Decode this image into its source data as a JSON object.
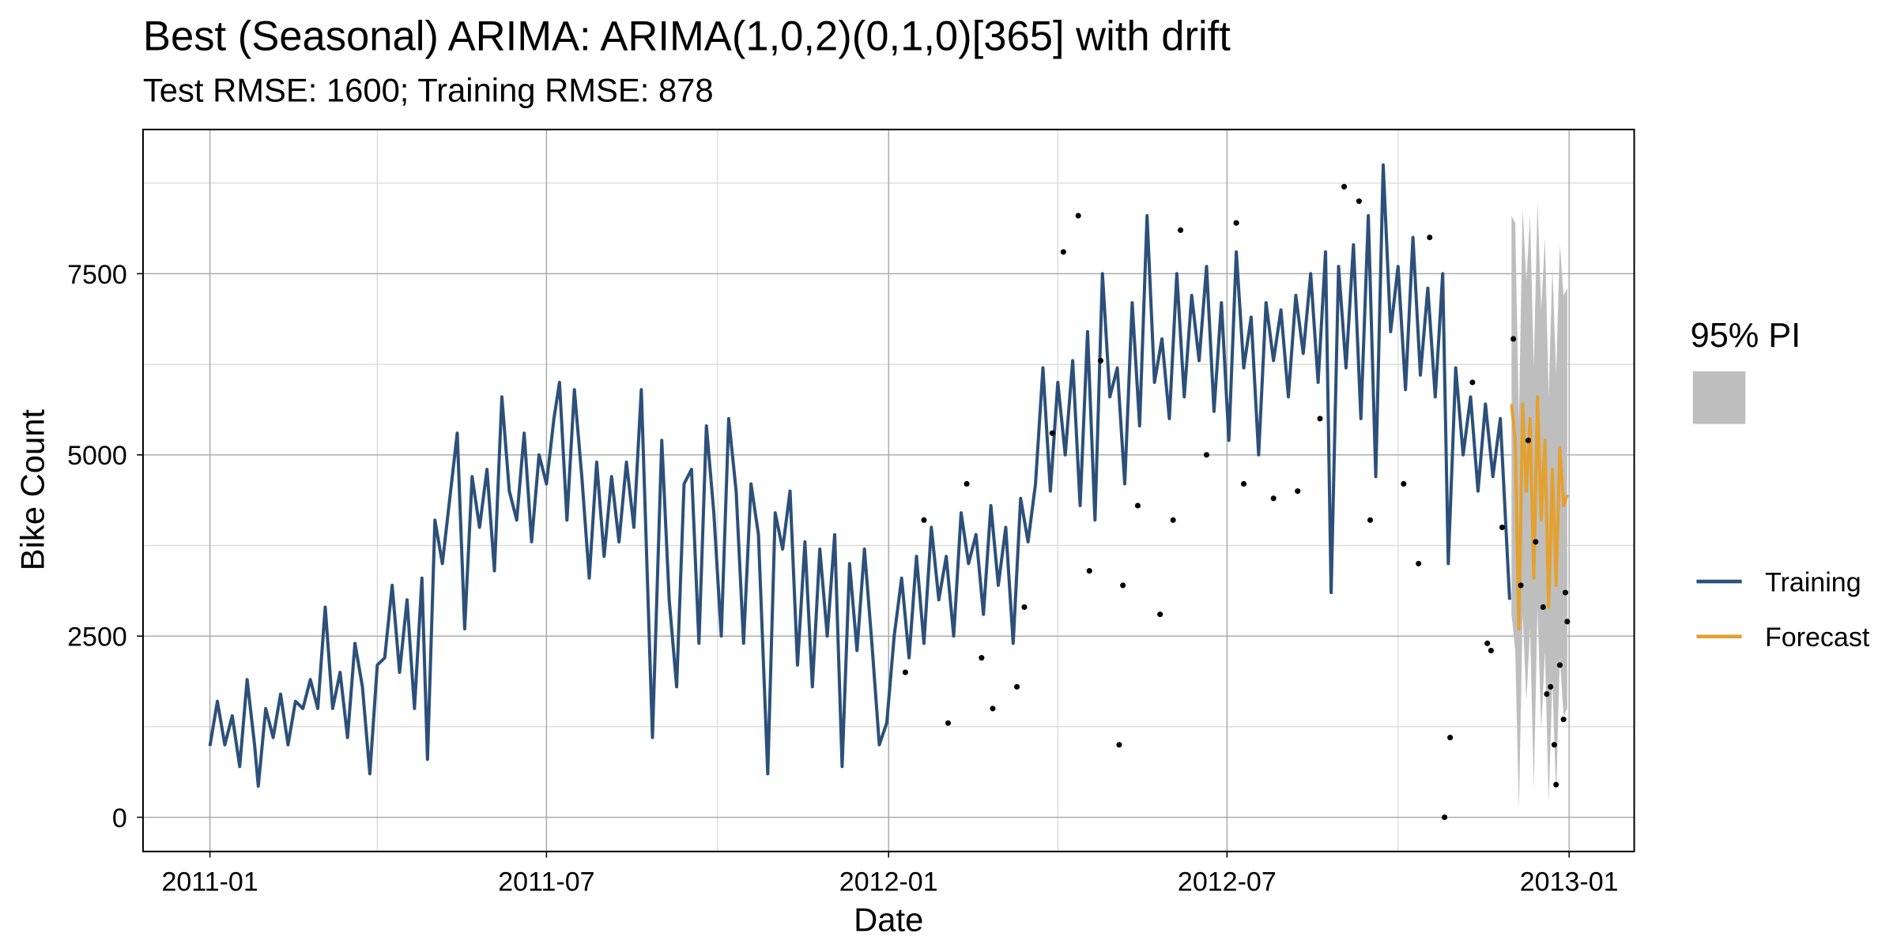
{
  "chart_data": {
    "type": "line",
    "title": "Best (Seasonal) ARIMA: ARIMA(1,0,2)(0,1,0)[365] with drift",
    "subtitle": "Test RMSE: 1600; Training RMSE: 878",
    "x_label": "Date",
    "y_label": "Bike Count",
    "xlim": [
      "2010-11-26",
      "2013-02-05"
    ],
    "ylim": [
      -472,
      9489
    ],
    "xticks": [
      {
        "value": "2011-01-01",
        "label": "2011-01"
      },
      {
        "value": "2011-07-01",
        "label": "2011-07"
      },
      {
        "value": "2012-01-01",
        "label": "2012-01"
      },
      {
        "value": "2012-07-01",
        "label": "2012-07"
      },
      {
        "value": "2013-01-01",
        "label": "2013-01"
      }
    ],
    "xminorticks": [
      "2011-04-01",
      "2011-10-01",
      "2012-04-01",
      "2012-10-01"
    ],
    "yticks": [
      0,
      2500,
      5000,
      7500
    ],
    "yminorticks": [
      1250,
      3750,
      6250,
      8750
    ],
    "grid": true,
    "series": [
      {
        "name": "Training",
        "color": "#2c5079",
        "x": [
          "2011-01-01",
          "2011-01-05",
          "2011-01-09",
          "2011-01-13",
          "2011-01-17",
          "2011-01-21",
          "2011-01-25",
          "2011-01-27",
          "2011-01-31",
          "2011-02-04",
          "2011-02-08",
          "2011-02-12",
          "2011-02-16",
          "2011-02-20",
          "2011-02-24",
          "2011-02-28",
          "2011-03-04",
          "2011-03-08",
          "2011-03-12",
          "2011-03-16",
          "2011-03-20",
          "2011-03-24",
          "2011-03-28",
          "2011-04-01",
          "2011-04-05",
          "2011-04-09",
          "2011-04-13",
          "2011-04-17",
          "2011-04-21",
          "2011-04-25",
          "2011-04-28",
          "2011-05-02",
          "2011-05-06",
          "2011-05-10",
          "2011-05-14",
          "2011-05-18",
          "2011-05-22",
          "2011-05-26",
          "2011-05-30",
          "2011-06-03",
          "2011-06-07",
          "2011-06-11",
          "2011-06-15",
          "2011-06-19",
          "2011-06-23",
          "2011-06-27",
          "2011-07-01",
          "2011-07-05",
          "2011-07-08",
          "2011-07-12",
          "2011-07-16",
          "2011-07-20",
          "2011-07-24",
          "2011-07-28",
          "2011-08-01",
          "2011-08-05",
          "2011-08-09",
          "2011-08-13",
          "2011-08-17",
          "2011-08-21",
          "2011-08-27",
          "2011-09-01",
          "2011-09-05",
          "2011-09-09",
          "2011-09-13",
          "2011-09-17",
          "2011-09-21",
          "2011-09-25",
          "2011-09-29",
          "2011-10-03",
          "2011-10-07",
          "2011-10-11",
          "2011-10-15",
          "2011-10-19",
          "2011-10-23",
          "2011-10-28",
          "2011-11-01",
          "2011-11-05",
          "2011-11-09",
          "2011-11-13",
          "2011-11-17",
          "2011-11-21",
          "2011-11-25",
          "2011-11-29",
          "2011-12-03",
          "2011-12-07",
          "2011-12-11",
          "2011-12-15",
          "2011-12-19",
          "2011-12-23",
          "2011-12-27",
          "2011-12-31",
          "2012-01-04",
          "2012-01-08",
          "2012-01-12",
          "2012-01-16",
          "2012-01-20",
          "2012-01-24",
          "2012-01-28",
          "2012-02-01",
          "2012-02-05",
          "2012-02-09",
          "2012-02-13",
          "2012-02-17",
          "2012-02-21",
          "2012-02-25",
          "2012-02-29",
          "2012-03-04",
          "2012-03-08",
          "2012-03-12",
          "2012-03-16",
          "2012-03-20",
          "2012-03-24",
          "2012-03-28",
          "2012-04-01",
          "2012-04-05",
          "2012-04-09",
          "2012-04-13",
          "2012-04-17",
          "2012-04-21",
          "2012-04-25",
          "2012-04-29",
          "2012-05-03",
          "2012-05-07",
          "2012-05-11",
          "2012-05-15",
          "2012-05-19",
          "2012-05-23",
          "2012-05-27",
          "2012-05-31",
          "2012-06-04",
          "2012-06-08",
          "2012-06-12",
          "2012-06-16",
          "2012-06-20",
          "2012-06-24",
          "2012-06-28",
          "2012-07-02",
          "2012-07-06",
          "2012-07-10",
          "2012-07-14",
          "2012-07-18",
          "2012-07-22",
          "2012-07-26",
          "2012-07-30",
          "2012-08-03",
          "2012-08-07",
          "2012-08-11",
          "2012-08-15",
          "2012-08-19",
          "2012-08-23",
          "2012-08-26",
          "2012-08-30",
          "2012-09-03",
          "2012-09-07",
          "2012-09-11",
          "2012-09-15",
          "2012-09-19",
          "2012-09-23",
          "2012-09-27",
          "2012-10-01",
          "2012-10-05",
          "2012-10-09",
          "2012-10-13",
          "2012-10-17",
          "2012-10-21",
          "2012-10-25",
          "2012-10-28",
          "2012-11-01",
          "2012-11-05",
          "2012-11-09",
          "2012-11-13",
          "2012-11-17",
          "2012-11-21",
          "2012-11-25",
          "2012-11-30"
        ],
        "values": [
          985,
          1600,
          1000,
          1400,
          700,
          1900,
          1000,
          430,
          1500,
          1100,
          1700,
          1000,
          1600,
          1500,
          1900,
          1500,
          2900,
          1500,
          2000,
          1100,
          2400,
          1800,
          600,
          2100,
          2200,
          3200,
          2000,
          3000,
          1500,
          3300,
          800,
          4100,
          3500,
          4400,
          5300,
          2600,
          4700,
          4000,
          4800,
          3400,
          5800,
          4500,
          4100,
          5300,
          3800,
          5000,
          4600,
          5500,
          6000,
          4100,
          5900,
          4700,
          3300,
          4900,
          3600,
          4700,
          3800,
          4900,
          4000,
          5900,
          1100,
          5200,
          3000,
          1800,
          4600,
          4800,
          2400,
          5400,
          4200,
          2500,
          5500,
          4500,
          2400,
          4600,
          3900,
          600,
          4200,
          3700,
          4500,
          2100,
          3800,
          1800,
          3700,
          2500,
          3900,
          700,
          3500,
          2300,
          3700,
          2400,
          1000,
          1300,
          2500,
          3300,
          2200,
          3600,
          2400,
          4000,
          3000,
          3600,
          2500,
          4200,
          3500,
          3900,
          2800,
          4300,
          3200,
          4000,
          2400,
          4400,
          3800,
          4600,
          6200,
          4500,
          6000,
          5000,
          6300,
          4300,
          6700,
          4100,
          7500,
          5800,
          6200,
          4600,
          7100,
          5400,
          8300,
          6000,
          6600,
          5500,
          7500,
          5800,
          7200,
          6300,
          7600,
          5600,
          7100,
          5200,
          7800,
          6200,
          6900,
          5000,
          7100,
          6300,
          7000,
          5800,
          7200,
          6400,
          7500,
          6000,
          7800,
          3100,
          7600,
          6200,
          7900,
          5500,
          8300,
          4700,
          9000,
          6700,
          7600,
          5900,
          8000,
          6100,
          7300,
          5800,
          7500,
          3500,
          6200,
          5000,
          5800,
          4500,
          5700,
          4700,
          5500,
          3000
        ]
      },
      {
        "name": "Forecast",
        "color": "#e3a12f",
        "x": [
          "2012-12-01",
          "2012-12-03",
          "2012-12-05",
          "2012-12-07",
          "2012-12-09",
          "2012-12-11",
          "2012-12-13",
          "2012-12-15",
          "2012-12-17",
          "2012-12-19",
          "2012-12-21",
          "2012-12-23",
          "2012-12-25",
          "2012-12-27",
          "2012-12-29",
          "2012-12-31"
        ],
        "values": [
          5700,
          5200,
          2600,
          5700,
          4500,
          5500,
          3300,
          5800,
          4100,
          5200,
          2900,
          4800,
          3200,
          5100,
          4300,
          4450
        ]
      }
    ],
    "band": {
      "name": "95% PI",
      "color": "#bebebe",
      "x": [
        "2012-12-01",
        "2012-12-03",
        "2012-12-05",
        "2012-12-07",
        "2012-12-09",
        "2012-12-11",
        "2012-12-13",
        "2012-12-15",
        "2012-12-17",
        "2012-12-19",
        "2012-12-21",
        "2012-12-23",
        "2012-12-25",
        "2012-12-27",
        "2012-12-29",
        "2012-12-31"
      ],
      "lower": [
        2800,
        2300,
        100,
        2800,
        1600,
        2600,
        400,
        2900,
        1200,
        2300,
        200,
        1900,
        300,
        2200,
        1400,
        1500
      ],
      "upper": [
        8300,
        8200,
        5500,
        8400,
        7400,
        8300,
        6200,
        8500,
        7000,
        8000,
        5800,
        7600,
        6100,
        7900,
        7200,
        7300
      ]
    },
    "points": {
      "color": "#000000",
      "x": [
        "2012-01-10",
        "2012-01-20",
        "2012-02-02",
        "2012-02-12",
        "2012-02-20",
        "2012-02-26",
        "2012-03-10",
        "2012-03-14",
        "2012-03-29",
        "2012-04-04",
        "2012-04-12",
        "2012-04-18",
        "2012-04-24",
        "2012-05-04",
        "2012-05-06",
        "2012-05-14",
        "2012-05-26",
        "2012-06-02",
        "2012-06-06",
        "2012-06-20",
        "2012-07-06",
        "2012-07-10",
        "2012-07-26",
        "2012-08-08",
        "2012-08-20",
        "2012-09-02",
        "2012-09-10",
        "2012-09-16",
        "2012-10-04",
        "2012-10-12",
        "2012-10-18",
        "2012-10-26",
        "2012-10-29",
        "2012-11-10",
        "2012-11-18",
        "2012-11-20",
        "2012-11-26",
        "2012-12-02",
        "2012-12-06",
        "2012-12-10",
        "2012-12-14",
        "2012-12-18",
        "2012-12-20",
        "2012-12-22",
        "2012-12-24",
        "2012-12-25",
        "2012-12-27",
        "2012-12-29",
        "2012-12-30",
        "2012-12-31"
      ],
      "values": [
        2000,
        4100,
        1300,
        4600,
        2200,
        1500,
        1800,
        2900,
        5300,
        7800,
        8300,
        3400,
        6300,
        1000,
        3200,
        4300,
        2800,
        4100,
        8100,
        5000,
        8200,
        4600,
        4400,
        4500,
        5500,
        8700,
        8500,
        4100,
        4600,
        3500,
        8000,
        0,
        1100,
        6000,
        2400,
        2300,
        4000,
        6600,
        3200,
        5200,
        3800,
        2900,
        1700,
        1800,
        1000,
        450,
        2100,
        1350,
        3100,
        2700
      ]
    }
  }
}
